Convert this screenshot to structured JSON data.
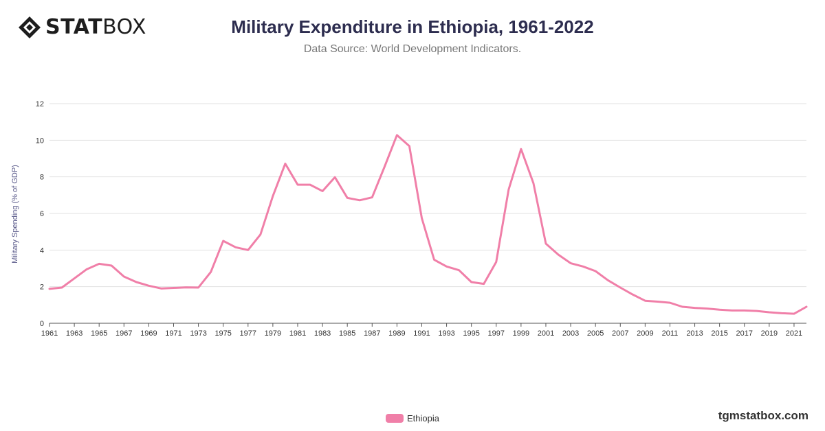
{
  "brand": {
    "logo_bold": "STAT",
    "logo_light": "BOX",
    "site": "tgmstatbox.com"
  },
  "colors": {
    "line": "#f07fa8",
    "title": "#2d2d4f",
    "grid": "#e2e2e2",
    "axis_label": "#5a5a8a"
  },
  "chart_data": {
    "type": "line",
    "title": "Military Expenditure in Ethiopia, 1961-2022",
    "subtitle": "Data Source: World Development Indicators.",
    "xlabel": "",
    "ylabel": "Military Spending (% of GDP)",
    "ylim": [
      0,
      12
    ],
    "yticks": [
      0,
      2,
      4,
      6,
      8,
      10,
      12
    ],
    "xlim": [
      1961,
      2022
    ],
    "xticks": [
      1961,
      1963,
      1965,
      1967,
      1969,
      1971,
      1973,
      1975,
      1977,
      1979,
      1981,
      1983,
      1985,
      1987,
      1989,
      1991,
      1993,
      1995,
      1997,
      1999,
      2001,
      2003,
      2005,
      2007,
      2009,
      2011,
      2013,
      2015,
      2017,
      2019,
      2021
    ],
    "grid": true,
    "legend_position": "bottom",
    "series": [
      {
        "name": "Ethiopia",
        "color": "#f07fa8",
        "x": [
          1961,
          1962,
          1963,
          1964,
          1965,
          1966,
          1967,
          1968,
          1969,
          1970,
          1971,
          1972,
          1973,
          1974,
          1975,
          1976,
          1977,
          1978,
          1979,
          1980,
          1981,
          1982,
          1983,
          1984,
          1985,
          1986,
          1987,
          1988,
          1989,
          1990,
          1991,
          1992,
          1993,
          1994,
          1995,
          1996,
          1997,
          1998,
          1999,
          2000,
          2001,
          2002,
          2003,
          2004,
          2005,
          2006,
          2007,
          2008,
          2009,
          2010,
          2011,
          2012,
          2013,
          2014,
          2015,
          2016,
          2017,
          2018,
          2019,
          2020,
          2021,
          2022
        ],
        "values": [
          1.88,
          1.95,
          2.45,
          2.95,
          3.25,
          3.15,
          2.55,
          2.25,
          2.05,
          1.9,
          1.93,
          1.96,
          1.95,
          2.8,
          4.5,
          4.15,
          4.0,
          4.85,
          6.95,
          8.72,
          7.57,
          7.57,
          7.22,
          7.98,
          6.85,
          6.72,
          6.88,
          8.55,
          10.28,
          9.68,
          5.75,
          3.47,
          3.1,
          2.9,
          2.25,
          2.15,
          3.35,
          7.3,
          9.52,
          7.65,
          4.35,
          3.75,
          3.28,
          3.1,
          2.85,
          2.35,
          1.95,
          1.57,
          1.23,
          1.18,
          1.12,
          0.9,
          0.84,
          0.8,
          0.74,
          0.7,
          0.7,
          0.67,
          0.6,
          0.55,
          0.52,
          0.9
        ]
      }
    ]
  }
}
